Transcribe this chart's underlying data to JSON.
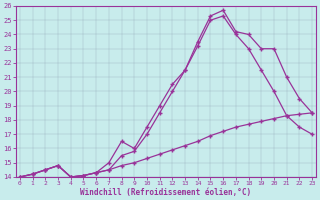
{
  "xlabel": "Windchill (Refroidissement éolien,°C)",
  "bg_color": "#c8ecec",
  "line_color": "#993399",
  "xlim_min": -0.3,
  "xlim_max": 23.3,
  "ylim_min": 14,
  "ylim_max": 26,
  "xticks": [
    0,
    1,
    2,
    3,
    4,
    5,
    6,
    7,
    8,
    9,
    10,
    11,
    12,
    13,
    14,
    15,
    16,
    17,
    18,
    19,
    20,
    21,
    22,
    23
  ],
  "yticks": [
    14,
    15,
    16,
    17,
    18,
    19,
    20,
    21,
    22,
    23,
    24,
    25,
    26
  ],
  "line1_x": [
    0,
    1,
    2,
    3,
    4,
    5,
    6,
    7,
    8,
    9,
    10,
    11,
    12,
    13,
    14,
    15,
    16,
    17,
    18,
    19,
    20,
    21,
    22,
    23
  ],
  "line1_y": [
    14.0,
    14.2,
    14.5,
    14.8,
    14.0,
    14.1,
    14.3,
    14.5,
    14.8,
    15.0,
    15.3,
    15.6,
    15.9,
    16.2,
    16.5,
    16.9,
    17.2,
    17.5,
    17.7,
    17.9,
    18.1,
    18.3,
    18.4,
    18.5
  ],
  "line2_x": [
    0,
    1,
    2,
    3,
    4,
    5,
    6,
    7,
    8,
    9,
    10,
    11,
    12,
    13,
    14,
    15,
    16,
    17,
    18,
    19,
    20,
    21,
    22,
    23
  ],
  "line2_y": [
    14.0,
    14.2,
    14.5,
    14.8,
    14.0,
    14.1,
    14.3,
    15.0,
    16.5,
    16.0,
    17.5,
    19.0,
    20.5,
    21.5,
    23.2,
    25.0,
    25.3,
    24.0,
    23.0,
    21.5,
    20.0,
    18.3,
    17.5,
    17.0
  ],
  "line3_x": [
    0,
    1,
    2,
    3,
    4,
    5,
    6,
    7,
    8,
    9,
    10,
    11,
    12,
    13,
    14,
    15,
    16,
    17,
    18,
    19,
    20,
    21,
    22,
    23
  ],
  "line3_y": [
    14.0,
    14.2,
    14.5,
    14.8,
    14.0,
    14.1,
    14.3,
    14.5,
    15.5,
    15.8,
    17.0,
    18.5,
    20.0,
    21.5,
    23.5,
    25.3,
    25.7,
    24.2,
    24.0,
    23.0,
    23.0,
    21.0,
    19.5,
    18.5
  ]
}
